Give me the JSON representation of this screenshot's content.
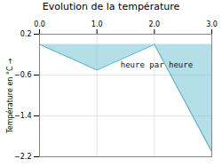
{
  "chart_data": {
    "type": "area",
    "title": "Evolution de la température",
    "ylabel": "Température en °C",
    "annotations": [
      "heure par heure"
    ],
    "x": [
      0,
      1,
      2,
      3
    ],
    "values": [
      0.0,
      -0.5,
      0.0,
      -2.1
    ],
    "xlim": [
      0,
      3
    ],
    "ylim": [
      -2.2,
      0.2
    ],
    "xticks": [
      0,
      1,
      2,
      3
    ],
    "yticks": [
      0.2,
      -0.6,
      -1.4,
      -2.2
    ],
    "grid": true,
    "color": "#5ab8cc"
  }
}
